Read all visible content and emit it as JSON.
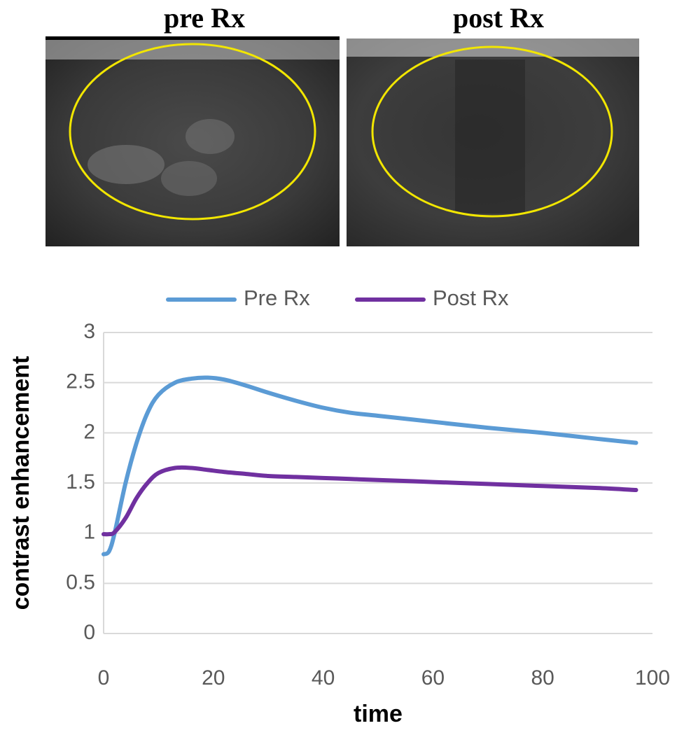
{
  "images": [
    {
      "title": "pre Rx"
    },
    {
      "title": "post Rx"
    }
  ],
  "chart_data": {
    "type": "line",
    "x_label": "time",
    "y_label": "contrast enhancement",
    "x": [
      0,
      1,
      2,
      4,
      6,
      8,
      10,
      13,
      16,
      19,
      22,
      26,
      30,
      35,
      40,
      45,
      50,
      60,
      70,
      80,
      90,
      97
    ],
    "series": [
      {
        "name": "Pre Rx",
        "color": "#5b9bd5",
        "values": [
          0.79,
          0.82,
          1.0,
          1.5,
          1.9,
          2.2,
          2.38,
          2.5,
          2.54,
          2.55,
          2.53,
          2.47,
          2.4,
          2.32,
          2.25,
          2.2,
          2.17,
          2.11,
          2.05,
          2.0,
          1.94,
          1.9
        ]
      },
      {
        "name": "Post Rx",
        "color": "#7030a0",
        "values": [
          0.99,
          0.99,
          1.01,
          1.15,
          1.35,
          1.5,
          1.6,
          1.65,
          1.65,
          1.63,
          1.61,
          1.59,
          1.57,
          1.56,
          1.55,
          1.54,
          1.53,
          1.51,
          1.49,
          1.47,
          1.45,
          1.43
        ]
      }
    ],
    "xlim": [
      0,
      100
    ],
    "xticks": [
      0,
      20,
      40,
      60,
      80,
      100
    ],
    "ylim": [
      0,
      3
    ],
    "yticks": [
      0,
      0.5,
      1,
      1.5,
      2,
      2.5,
      3
    ],
    "grid": true,
    "legend": "top"
  }
}
